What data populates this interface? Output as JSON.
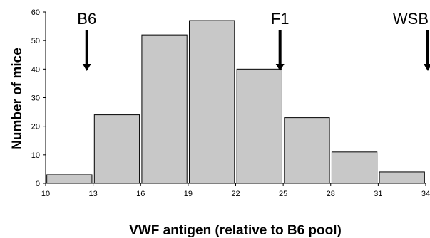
{
  "chart_data": {
    "type": "bar",
    "title": "",
    "xlabel": "VWF antigen (relative to B6 pool)",
    "ylabel": "Number of mice",
    "x_ticks": [
      "10",
      "13",
      "16",
      "19",
      "22",
      "25",
      "28",
      "31",
      "34"
    ],
    "y_ticks": [
      "0",
      "10",
      "20",
      "30",
      "40",
      "50",
      "60"
    ],
    "xlim": [
      10,
      34
    ],
    "ylim": [
      0,
      60
    ],
    "bins": [
      {
        "start": 10,
        "end": 13,
        "value": 3
      },
      {
        "start": 13,
        "end": 16,
        "value": 24
      },
      {
        "start": 16,
        "end": 19,
        "value": 52
      },
      {
        "start": 19,
        "end": 22,
        "value": 57
      },
      {
        "start": 22,
        "end": 25,
        "value": 40
      },
      {
        "start": 25,
        "end": 28,
        "value": 23
      },
      {
        "start": 28,
        "end": 31,
        "value": 11
      },
      {
        "start": 31,
        "end": 34,
        "value": 4
      }
    ],
    "annotations": [
      {
        "label": "B6",
        "x": 12.6
      },
      {
        "label": "F1",
        "x": 24.8
      },
      {
        "label": "WSB",
        "x": 34.2
      }
    ],
    "grid": false,
    "bar_color": "#c8c8c8"
  }
}
